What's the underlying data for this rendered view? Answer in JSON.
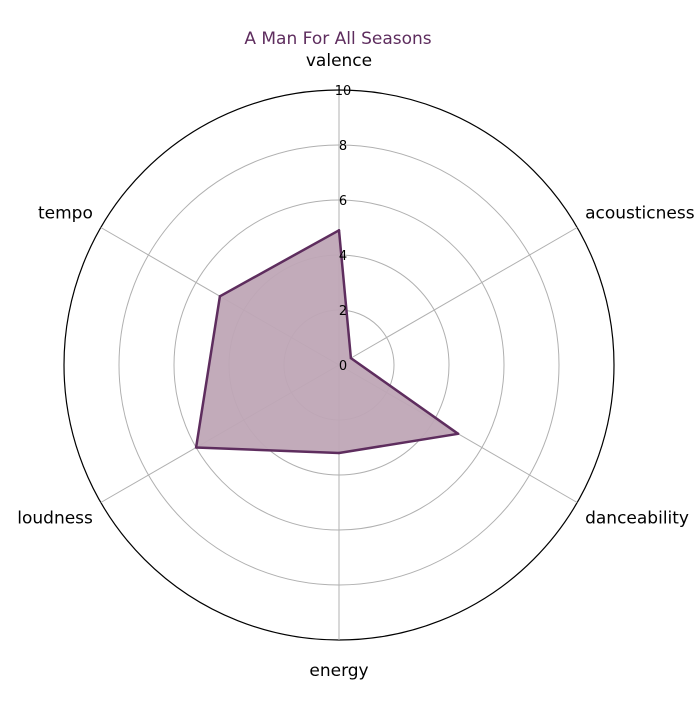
{
  "chart_data": {
    "type": "radar",
    "title": "A Man For All Seasons",
    "axes": [
      "valence",
      "acousticness",
      "danceability",
      "energy",
      "loudness",
      "tempo"
    ],
    "series": [
      {
        "values": [
          4.9,
          0.5,
          5.0,
          3.2,
          6.0,
          5.0
        ]
      }
    ],
    "rlim": [
      0,
      10
    ],
    "r_ticks": [
      "0",
      "2",
      "4",
      "6",
      "8",
      "10"
    ],
    "grid": true,
    "colors": {
      "line": "#5e2d5e",
      "fill": "#bfa6b6",
      "title": "#5e2d5e"
    }
  }
}
